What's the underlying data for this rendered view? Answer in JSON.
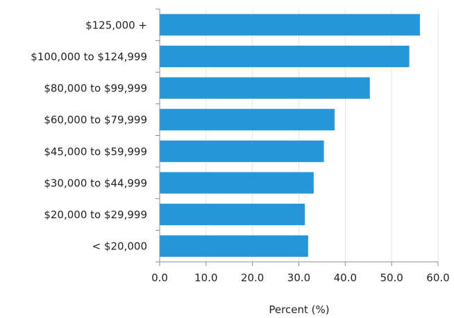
{
  "chart_data": {
    "type": "bar",
    "orientation": "horizontal",
    "categories": [
      "$125,000 +",
      "$100,000 to $124,999",
      "$80,000 to $99,999",
      "$60,000 to $79,999",
      "$45,000 to $59,999",
      "$30,000 to $44,999",
      "$20,000 to $29,999",
      "< $20,000"
    ],
    "values": [
      56.1,
      53.8,
      45.3,
      37.7,
      35.4,
      33.2,
      31.3,
      32.0
    ],
    "xlabel": "Percent (%)",
    "ylabel": "",
    "xlim": [
      0,
      60
    ],
    "xticks": [
      "0.0",
      "10.0",
      "20.0",
      "30.0",
      "40.0",
      "50.0",
      "60.0"
    ],
    "grid": "vertical",
    "legend": "none",
    "colors": {
      "bar": "#2596d6",
      "grid": "#e6e6e6",
      "axis": "#8c8c8c"
    }
  }
}
